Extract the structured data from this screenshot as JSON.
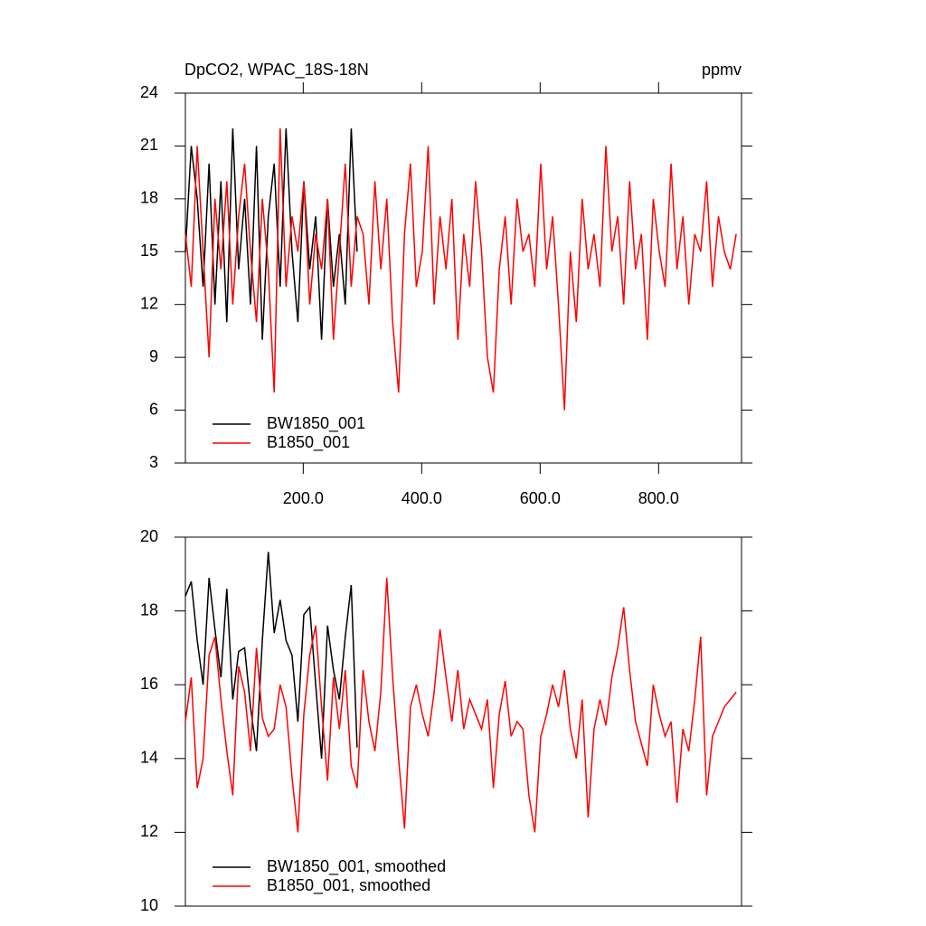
{
  "chart_data": [
    {
      "type": "line",
      "title": "DpCO2, WPAC_18S-18N",
      "units": "ppmv",
      "xlim": [
        1,
        940
      ],
      "xticks": [
        {
          "value": 200,
          "label": "200.0"
        },
        {
          "value": 400,
          "label": "400.0"
        },
        {
          "value": 600,
          "label": "600.0"
        },
        {
          "value": 800,
          "label": "800.0"
        }
      ],
      "ylim": [
        3,
        24
      ],
      "yticks": [
        3,
        6,
        9,
        12,
        15,
        18,
        21,
        24
      ],
      "series": [
        {
          "name": "BW1850_001",
          "color": "#000000",
          "x": [
            1,
            11,
            21,
            31,
            41,
            51,
            61,
            71,
            81,
            91,
            101,
            111,
            121,
            131,
            141,
            151,
            161,
            171,
            181,
            191,
            201,
            211,
            221,
            231,
            241,
            251,
            261,
            271,
            281,
            291
          ],
          "values": [
            15,
            21,
            18,
            13,
            20,
            12,
            19,
            11,
            22,
            14,
            18,
            12,
            21,
            10,
            17,
            20,
            13,
            22,
            15,
            11,
            19,
            14,
            17,
            10,
            18,
            13,
            16,
            12,
            22,
            15
          ]
        },
        {
          "name": "B1850_001",
          "color": "#ff0000",
          "x": [
            1,
            11,
            21,
            31,
            41,
            51,
            61,
            71,
            81,
            91,
            101,
            111,
            121,
            131,
            141,
            151,
            161,
            171,
            181,
            191,
            201,
            211,
            221,
            231,
            241,
            251,
            261,
            271,
            281,
            291,
            301,
            311,
            321,
            331,
            341,
            351,
            361,
            371,
            381,
            391,
            401,
            411,
            421,
            431,
            441,
            451,
            461,
            471,
            481,
            491,
            501,
            511,
            521,
            531,
            541,
            551,
            561,
            571,
            581,
            591,
            601,
            611,
            621,
            631,
            641,
            651,
            661,
            671,
            681,
            691,
            701,
            711,
            721,
            731,
            741,
            751,
            761,
            771,
            781,
            791,
            801,
            811,
            821,
            831,
            841,
            851,
            861,
            871,
            881,
            891,
            901,
            911,
            921,
            931
          ],
          "values": [
            16,
            13,
            21,
            15,
            9,
            18,
            14,
            19,
            12,
            17,
            20,
            15,
            11,
            18,
            14,
            7,
            22,
            13,
            17,
            15,
            19,
            12,
            16,
            14,
            18,
            10,
            15,
            20,
            13,
            17,
            16,
            12,
            19,
            14,
            18,
            11,
            7,
            16,
            20,
            13,
            15,
            21,
            12,
            17,
            14,
            18,
            10,
            16,
            13,
            19,
            15,
            9,
            7,
            14,
            17,
            12,
            18,
            15,
            16,
            13,
            20,
            14,
            17,
            12,
            6,
            15,
            11,
            18,
            14,
            16,
            13,
            21,
            15,
            17,
            12,
            19,
            14,
            16,
            10,
            18,
            15,
            13,
            20,
            14,
            17,
            12,
            16,
            15,
            19,
            13,
            17,
            15,
            14,
            16
          ]
        }
      ]
    },
    {
      "type": "line",
      "xlim": [
        1,
        940
      ],
      "ylim": [
        10,
        20
      ],
      "yticks": [
        10,
        12,
        14,
        16,
        18,
        20
      ],
      "series": [
        {
          "name": "BW1850_001, smoothed",
          "color": "#000000",
          "x": [
            1,
            11,
            21,
            31,
            41,
            51,
            61,
            71,
            81,
            91,
            101,
            111,
            121,
            131,
            141,
            151,
            161,
            171,
            181,
            191,
            201,
            211,
            221,
            231,
            241,
            251,
            261,
            271,
            281,
            291
          ],
          "values": [
            18.4,
            18.8,
            17.2,
            16.0,
            18.9,
            17.5,
            16.2,
            18.6,
            15.6,
            16.9,
            17.0,
            15.4,
            14.2,
            17.2,
            19.6,
            17.4,
            18.3,
            17.2,
            16.8,
            15.0,
            17.9,
            18.1,
            16.0,
            14.0,
            17.6,
            16.4,
            15.6,
            17.3,
            18.7,
            14.3
          ]
        },
        {
          "name": "B1850_001, smoothed",
          "color": "#ff0000",
          "x": [
            1,
            11,
            21,
            31,
            41,
            51,
            61,
            71,
            81,
            91,
            101,
            111,
            121,
            131,
            141,
            151,
            161,
            171,
            181,
            191,
            201,
            211,
            221,
            231,
            241,
            251,
            261,
            271,
            281,
            291,
            301,
            311,
            321,
            331,
            341,
            351,
            361,
            371,
            381,
            391,
            401,
            411,
            421,
            431,
            441,
            451,
            461,
            471,
            481,
            491,
            501,
            511,
            521,
            531,
            541,
            551,
            561,
            571,
            581,
            591,
            601,
            611,
            621,
            631,
            641,
            651,
            661,
            671,
            681,
            691,
            701,
            711,
            721,
            731,
            741,
            751,
            761,
            771,
            781,
            791,
            801,
            811,
            821,
            831,
            841,
            851,
            861,
            871,
            881,
            891,
            901,
            911,
            921,
            931
          ],
          "values": [
            15.0,
            16.2,
            13.2,
            14.0,
            16.8,
            17.3,
            15.6,
            14.2,
            13.0,
            16.5,
            15.8,
            14.2,
            17.0,
            15.1,
            14.6,
            14.8,
            16.0,
            15.4,
            13.5,
            12.0,
            15.2,
            16.8,
            17.6,
            15.4,
            13.4,
            16.2,
            14.8,
            16.4,
            13.8,
            13.2,
            16.4,
            15.0,
            14.2,
            15.8,
            18.9,
            16.2,
            14.0,
            12.1,
            15.4,
            16.0,
            15.2,
            14.6,
            15.8,
            17.5,
            16.2,
            15.0,
            16.4,
            14.8,
            15.6,
            15.2,
            14.8,
            15.6,
            13.2,
            15.2,
            16.1,
            14.6,
            15.0,
            14.8,
            13.0,
            12.0,
            14.6,
            15.2,
            16.0,
            15.4,
            16.4,
            14.8,
            14.0,
            15.6,
            12.4,
            14.8,
            15.6,
            14.9,
            16.2,
            17.0,
            18.1,
            16.4,
            15.0,
            14.4,
            13.8,
            16.0,
            15.2,
            14.6,
            15.0,
            12.8,
            14.8,
            14.2,
            15.6,
            17.3,
            13.0,
            14.6,
            15.0,
            15.4,
            15.6,
            15.8
          ]
        }
      ]
    }
  ]
}
